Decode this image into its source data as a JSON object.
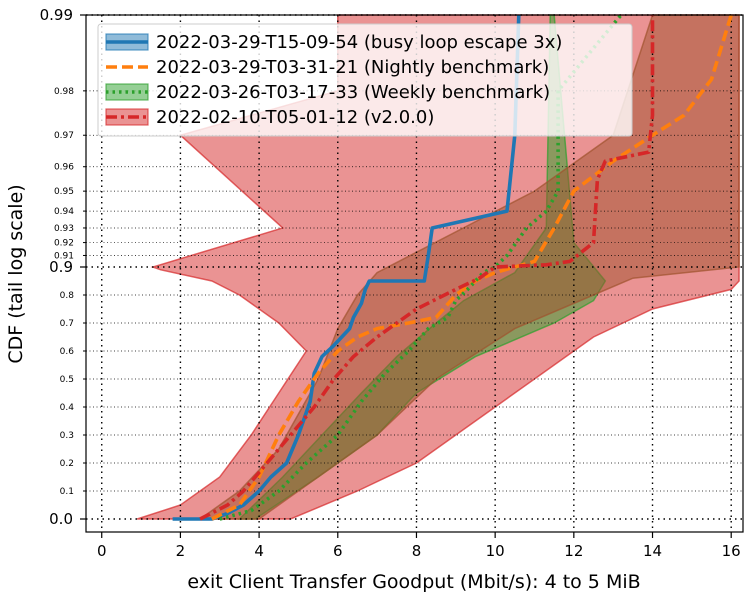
{
  "chart_data": {
    "type": "line",
    "xlabel": "exit Client Transfer Goodput (Mbit/s): 4 to 5 MiB",
    "ylabel": "CDF (tail log scale)",
    "xlim": [
      -0.4,
      16.3
    ],
    "x_ticks": [
      "0",
      "2",
      "4",
      "6",
      "8",
      "10",
      "12",
      "14",
      "16"
    ],
    "y_scale": "linear below 0.9, tail-log above 0.9",
    "y_major_ticks": [
      "0.0",
      "0.9",
      "0.99"
    ],
    "y_minor_ticks": [
      "0.1",
      "0.2",
      "0.3",
      "0.4",
      "0.5",
      "0.6",
      "0.7",
      "0.8",
      "0.91",
      "0.92",
      "0.93",
      "0.94",
      "0.95",
      "0.96",
      "0.97",
      "0.98"
    ],
    "grid": true,
    "legend_position": "top-left",
    "series": [
      {
        "name": "2022-03-29-T15-09-54 (busy loop escape 3x)",
        "color": "#1f77b4",
        "line_style": "solid",
        "points": [
          [
            1.8,
            0.0
          ],
          [
            2.8,
            0.0
          ],
          [
            3.2,
            0.02
          ],
          [
            3.6,
            0.05
          ],
          [
            4.0,
            0.1
          ],
          [
            4.3,
            0.15
          ],
          [
            4.7,
            0.2
          ],
          [
            5.0,
            0.3
          ],
          [
            5.3,
            0.42
          ],
          [
            5.4,
            0.52
          ],
          [
            5.6,
            0.58
          ],
          [
            5.9,
            0.62
          ],
          [
            6.3,
            0.68
          ],
          [
            6.4,
            0.72
          ],
          [
            6.6,
            0.77
          ],
          [
            6.7,
            0.82
          ],
          [
            6.8,
            0.85
          ],
          [
            8.2,
            0.85
          ],
          [
            8.3,
            0.91
          ],
          [
            8.4,
            0.93
          ],
          [
            10.3,
            0.94
          ],
          [
            10.5,
            0.97
          ],
          [
            10.6,
            0.99
          ]
        ]
      },
      {
        "name": "2022-03-29-T03-31-21 (Nightly benchmark)",
        "color": "#ff7f0e",
        "line_style": "dashed",
        "points": [
          [
            2.8,
            0.0
          ],
          [
            3.5,
            0.05
          ],
          [
            4.0,
            0.15
          ],
          [
            4.5,
            0.3
          ],
          [
            5.0,
            0.42
          ],
          [
            5.5,
            0.52
          ],
          [
            6.0,
            0.6
          ],
          [
            6.5,
            0.65
          ],
          [
            7.0,
            0.68
          ],
          [
            7.8,
            0.7
          ],
          [
            8.5,
            0.72
          ],
          [
            9.0,
            0.8
          ],
          [
            9.5,
            0.85
          ],
          [
            10.0,
            0.88
          ],
          [
            10.5,
            0.9
          ],
          [
            11.0,
            0.905
          ],
          [
            11.5,
            0.93
          ],
          [
            12.0,
            0.95
          ],
          [
            13.0,
            0.962
          ],
          [
            14.0,
            0.97
          ],
          [
            14.8,
            0.975
          ],
          [
            15.5,
            0.982
          ],
          [
            16.0,
            0.99
          ]
        ]
      },
      {
        "name": "2022-03-26-T03-17-33 (Weekly benchmark)",
        "color": "#2ca02c",
        "line_style": "dotted",
        "points": [
          [
            3.0,
            0.0
          ],
          [
            3.8,
            0.03
          ],
          [
            4.5,
            0.1
          ],
          [
            5.2,
            0.2
          ],
          [
            6.0,
            0.3
          ],
          [
            6.6,
            0.42
          ],
          [
            7.2,
            0.52
          ],
          [
            7.8,
            0.6
          ],
          [
            8.3,
            0.68
          ],
          [
            8.8,
            0.72
          ],
          [
            9.0,
            0.78
          ],
          [
            9.3,
            0.82
          ],
          [
            9.7,
            0.88
          ],
          [
            10.0,
            0.9
          ],
          [
            10.3,
            0.91
          ],
          [
            10.8,
            0.93
          ],
          [
            11.3,
            0.94
          ],
          [
            11.6,
            0.95
          ],
          [
            11.6,
            0.98
          ],
          [
            13.2,
            0.99
          ]
        ]
      },
      {
        "name": "2022-02-10-T05-01-12 (v2.0.0)",
        "color": "#d62728",
        "line_style": "dashdot",
        "points": [
          [
            2.5,
            0.0
          ],
          [
            3.2,
            0.05
          ],
          [
            3.6,
            0.1
          ],
          [
            4.2,
            0.2
          ],
          [
            4.8,
            0.3
          ],
          [
            5.4,
            0.4
          ],
          [
            5.9,
            0.5
          ],
          [
            6.4,
            0.58
          ],
          [
            7.0,
            0.65
          ],
          [
            8.0,
            0.75
          ],
          [
            9.0,
            0.82
          ],
          [
            9.6,
            0.86
          ],
          [
            10.0,
            0.9
          ],
          [
            11.3,
            0.902
          ],
          [
            11.9,
            0.905
          ],
          [
            12.5,
            0.92
          ],
          [
            12.6,
            0.955
          ],
          [
            12.8,
            0.962
          ],
          [
            13.9,
            0.965
          ],
          [
            14.0,
            0.975
          ],
          [
            14.0,
            0.99
          ]
        ]
      }
    ],
    "envelopes": [
      {
        "series": "2022-02-10-T05-01-12 (v2.0.0)",
        "color": "#d62728",
        "lower": [
          [
            0.9,
            0.0
          ],
          [
            2.0,
            0.05
          ],
          [
            3.0,
            0.15
          ],
          [
            3.8,
            0.3
          ],
          [
            4.5,
            0.45
          ],
          [
            5.2,
            0.6
          ],
          [
            4.5,
            0.7
          ],
          [
            3.5,
            0.8
          ],
          [
            2.8,
            0.85
          ],
          [
            1.5,
            0.89
          ],
          [
            1.3,
            0.9
          ],
          [
            4.6,
            0.93
          ],
          [
            2.0,
            0.97
          ],
          [
            6.0,
            0.98
          ],
          [
            6.0,
            0.99
          ]
        ],
        "upper": [
          [
            4.8,
            0.0
          ],
          [
            6.5,
            0.1
          ],
          [
            8.0,
            0.2
          ],
          [
            9.5,
            0.35
          ],
          [
            11.0,
            0.5
          ],
          [
            12.5,
            0.65
          ],
          [
            14.0,
            0.75
          ],
          [
            16.0,
            0.82
          ],
          [
            16.2,
            0.85
          ],
          [
            16.2,
            0.9
          ],
          [
            16.2,
            0.99
          ]
        ]
      },
      {
        "series": "2022-03-26-T03-17-33 (Weekly benchmark)",
        "color": "#2ca02c",
        "lower": [
          [
            3.5,
            0.0
          ],
          [
            4.6,
            0.15
          ],
          [
            5.6,
            0.3
          ],
          [
            6.6,
            0.45
          ],
          [
            7.5,
            0.58
          ],
          [
            8.5,
            0.7
          ],
          [
            9.2,
            0.78
          ],
          [
            10.5,
            0.88
          ],
          [
            11.3,
            0.93
          ],
          [
            11.4,
            0.99
          ]
        ],
        "upper": [
          [
            3.9,
            0.0
          ],
          [
            5.5,
            0.15
          ],
          [
            7.0,
            0.3
          ],
          [
            8.0,
            0.45
          ],
          [
            9.5,
            0.58
          ],
          [
            11.5,
            0.7
          ],
          [
            12.5,
            0.78
          ],
          [
            12.8,
            0.85
          ],
          [
            12.0,
            0.92
          ],
          [
            11.5,
            0.99
          ]
        ]
      },
      {
        "series": "2022-03-29-T03-31-21 (Nightly benchmark)",
        "color": "#a0522d",
        "lower": [
          [
            2.5,
            0.0
          ],
          [
            3.5,
            0.1
          ],
          [
            4.5,
            0.25
          ],
          [
            5.5,
            0.5
          ],
          [
            6.0,
            0.68
          ],
          [
            6.5,
            0.8
          ],
          [
            7.0,
            0.88
          ],
          [
            11.0,
            0.95
          ],
          [
            13.0,
            0.97
          ],
          [
            14.0,
            0.99
          ]
        ],
        "upper": [
          [
            4.0,
            0.0
          ],
          [
            5.5,
            0.15
          ],
          [
            7.0,
            0.3
          ],
          [
            8.5,
            0.5
          ],
          [
            10.5,
            0.68
          ],
          [
            12.5,
            0.8
          ],
          [
            13.5,
            0.86
          ],
          [
            16.2,
            0.9
          ],
          [
            16.2,
            0.99
          ]
        ]
      }
    ]
  }
}
